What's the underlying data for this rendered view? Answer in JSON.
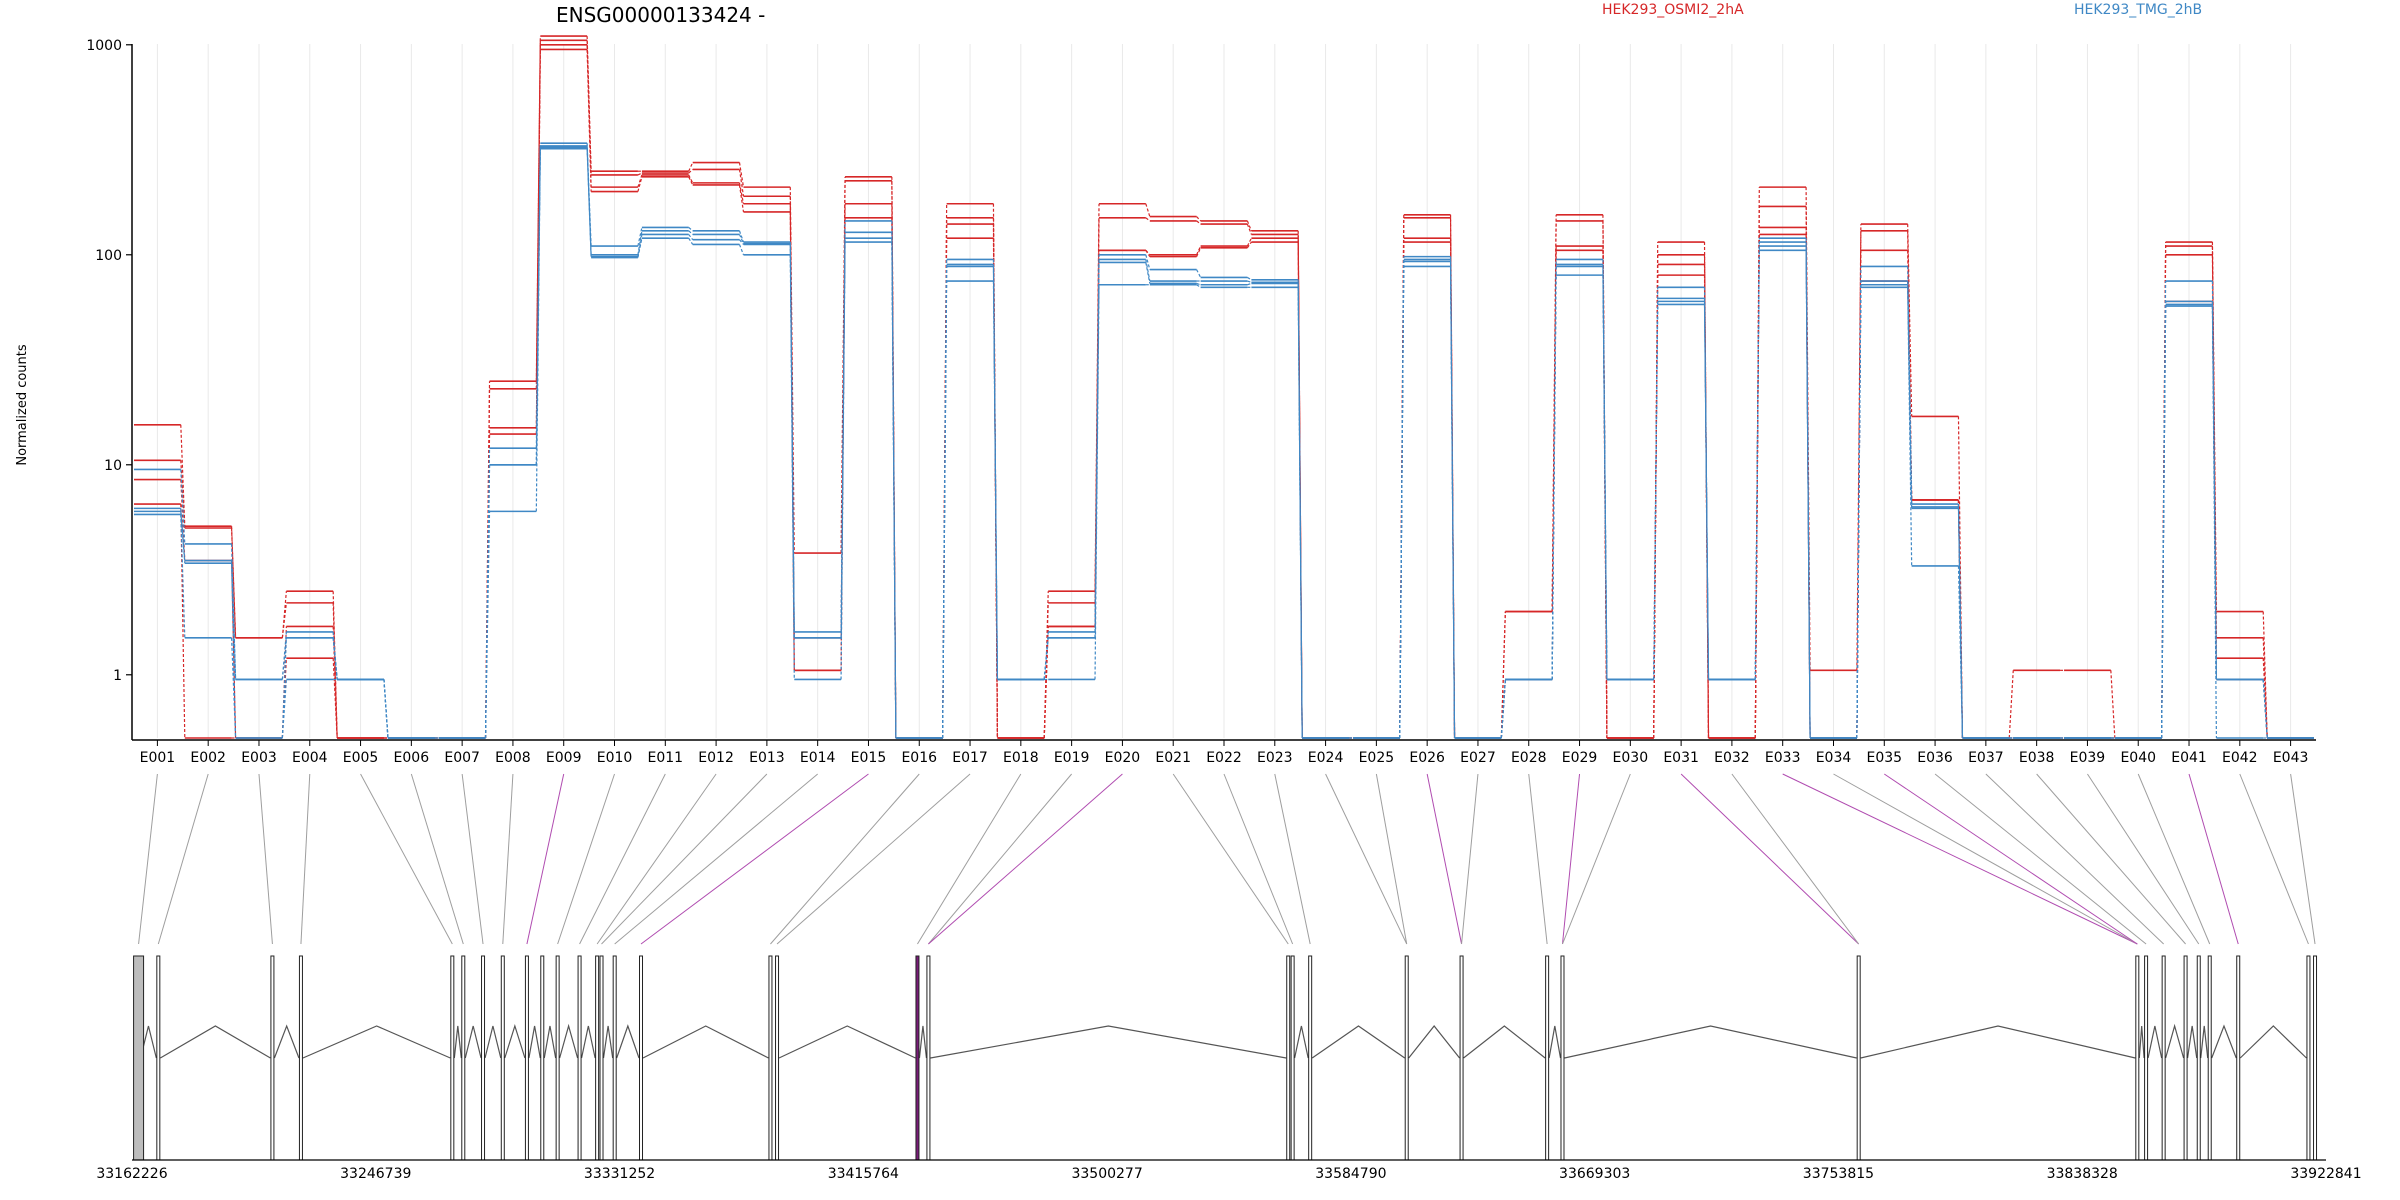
{
  "chart_data": {
    "type": "line",
    "title": "ENSG00000133424 -",
    "ylabel": "Normalized counts",
    "xlabel": "",
    "y_scale": "log",
    "yticks": [
      1,
      10,
      100,
      1000
    ],
    "ylim": [
      0.5,
      1200
    ],
    "grid": "vertical lines at exon centers",
    "legend_position": "top-right",
    "colors": {
      "HEK293_OSMI2_2hA": "#d62728",
      "HEK293_TMG_2hB": "#3f88c5"
    },
    "categories": [
      "E001",
      "E002",
      "E003",
      "E004",
      "E005",
      "E006",
      "E007",
      "E008",
      "E009",
      "E010",
      "E011",
      "E012",
      "E013",
      "E014",
      "E015",
      "E016",
      "E017",
      "E018",
      "E019",
      "E020",
      "E021",
      "E022",
      "E023",
      "E024",
      "E025",
      "E026",
      "E027",
      "E028",
      "E029",
      "E030",
      "E031",
      "E032",
      "E033",
      "E034",
      "E035",
      "E036",
      "E037",
      "E038",
      "E039",
      "E040",
      "E041",
      "E042",
      "E043"
    ],
    "series": [
      {
        "name": "HEK293_OSMI2_2hA",
        "group": "HEK293_OSMI2_2hA",
        "values": [
          15.5,
          5.1,
          1.5,
          2.5,
          0.5,
          0.5,
          0.5,
          25,
          1100,
          250,
          250,
          275,
          210,
          3.8,
          235,
          0.5,
          175,
          0.5,
          2.5,
          175,
          152,
          145,
          130,
          0.5,
          0.5,
          155,
          0.5,
          2,
          155,
          0.5,
          115,
          0.5,
          210,
          1.05,
          140,
          17,
          0.5,
          1.05,
          1.05,
          0.5,
          115,
          2,
          0.5
        ]
      },
      {
        "values": [
          10.5,
          5,
          1.5,
          2.2,
          0.5,
          0.5,
          0.5,
          23,
          1050,
          240,
          245,
          255,
          190,
          1.5,
          225,
          0.5,
          150,
          0.5,
          2.2,
          150,
          145,
          140,
          125,
          0.5,
          0.5,
          150,
          0.5,
          2,
          145,
          0.5,
          100,
          0.5,
          170,
          0.5,
          130,
          6.8,
          0.5,
          0.5,
          0.5,
          0.5,
          110,
          1.5,
          0.5
        ]
      },
      {
        "values": [
          8.5,
          3.5,
          0.5,
          1.2,
          0.5,
          0.5,
          0.5,
          15,
          1000,
          210,
          240,
          220,
          175,
          1.05,
          175,
          0.5,
          140,
          0.5,
          1.7,
          105,
          100,
          110,
          120,
          0.5,
          0.5,
          120,
          0.5,
          0.95,
          110,
          0.5,
          90,
          0.5,
          135,
          0.5,
          105,
          6.8,
          0.5,
          0.5,
          0.5,
          0.5,
          100,
          1.2,
          0.5
        ]
      },
      {
        "values": [
          6.5,
          0.5,
          0.5,
          1.7,
          0.5,
          0.5,
          0.5,
          14,
          950,
          200,
          235,
          215,
          160,
          1.05,
          150,
          0.5,
          120,
          0.5,
          1.7,
          105,
          98,
          108,
          115,
          0.5,
          0.5,
          115,
          0.5,
          0.95,
          105,
          0.5,
          80,
          0.5,
          125,
          0.5,
          75,
          6.8,
          0.5,
          0.5,
          0.5,
          0.5,
          60,
          0.95,
          0.5
        ]
      },
      {
        "name": "HEK293_TMG_2hB",
        "group": "HEK293_TMG_2hB",
        "values": [
          9.5,
          4.2,
          0.95,
          1.6,
          0.95,
          0.5,
          0.5,
          12,
          340,
          110,
          135,
          130,
          115,
          1.6,
          145,
          0.5,
          95,
          0.95,
          1.6,
          100,
          85,
          78,
          76,
          0.5,
          0.5,
          98,
          0.5,
          0.95,
          95,
          0.95,
          70,
          0.95,
          120,
          0.5,
          88,
          6.5,
          0.5,
          0.5,
          0.5,
          0.5,
          75,
          0.95,
          0.5
        ]
      },
      {
        "values": [
          6.2,
          3.5,
          0.95,
          1.5,
          0.95,
          0.5,
          0.5,
          10,
          330,
          100,
          130,
          125,
          113,
          1.5,
          128,
          0.5,
          90,
          0.95,
          1.5,
          95,
          75,
          75,
          74,
          0.5,
          0.5,
          95,
          0.5,
          0.95,
          90,
          0.95,
          62,
          0.95,
          115,
          0.5,
          75,
          6.3,
          0.5,
          0.5,
          0.5,
          0.5,
          60,
          0.95,
          0.5
        ]
      },
      {
        "values": [
          6,
          3.4,
          0.5,
          1.5,
          0.95,
          0.5,
          0.5,
          10,
          325,
          98,
          125,
          118,
          112,
          1.5,
          120,
          0.5,
          88,
          0.95,
          1.5,
          92,
          73,
          72,
          73,
          0.5,
          0.5,
          93,
          0.5,
          0.95,
          88,
          0.95,
          60,
          0.95,
          110,
          0.5,
          72,
          6.2,
          0.5,
          0.5,
          0.5,
          0.5,
          58,
          0.95,
          0.5
        ]
      },
      {
        "values": [
          5.8,
          1.5,
          0.5,
          0.95,
          0.95,
          0.5,
          0.5,
          6,
          320,
          97,
          120,
          112,
          100,
          0.95,
          115,
          0.5,
          75,
          0.95,
          0.95,
          72,
          72,
          70,
          70,
          0.5,
          0.5,
          88,
          0.5,
          0.95,
          80,
          0.95,
          58,
          0.95,
          105,
          0.5,
          70,
          3.3,
          0.5,
          0.5,
          0.5,
          0.5,
          57,
          0.5,
          0.5
        ]
      }
    ],
    "genomic_axis": {
      "tick_labels": [
        "33162226",
        "33246739",
        "33331252",
        "33415764",
        "33500277",
        "33584790",
        "33669303",
        "33753815",
        "33838328",
        "33922841"
      ]
    },
    "gene_model": {
      "exon_fraction_positions": [
        0.003,
        0.012,
        0.064,
        0.077,
        0.146,
        0.151,
        0.16,
        0.169,
        0.18,
        0.187,
        0.194,
        0.204,
        0.212,
        0.214,
        0.22,
        0.232,
        0.291,
        0.294,
        0.358,
        0.363,
        0.527,
        0.529,
        0.537,
        0.581,
        0.606,
        0.645,
        0.652,
        0.787,
        0.914,
        0.918,
        0.926,
        0.936,
        0.942,
        0.947,
        0.96,
        0.992,
        0.995
      ],
      "highlighted_exons": [
        "E009",
        "E015",
        "E020",
        "E026",
        "E029",
        "E031",
        "E033",
        "E035",
        "E041"
      ]
    }
  }
}
